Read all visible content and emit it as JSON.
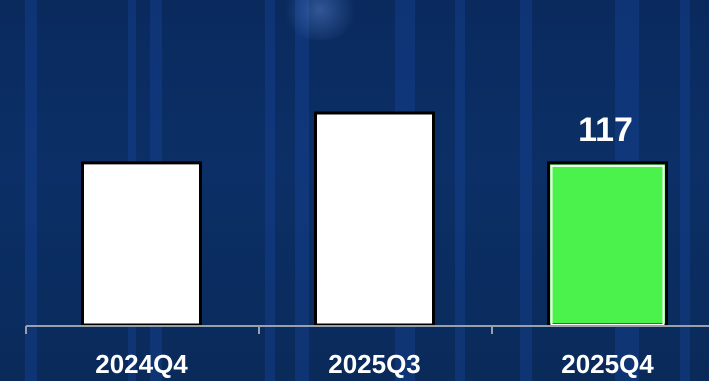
{
  "chart_data": {
    "type": "bar",
    "categories": [
      "2024Q4",
      "2025Q3",
      "2025Q4"
    ],
    "values": [
      117,
      153,
      117
    ],
    "data_labels": [
      "",
      "",
      "117"
    ],
    "title": "",
    "xlabel": "",
    "ylabel": "",
    "ylim": [
      0,
      160
    ],
    "grid": false,
    "colors": {
      "bar_default": "#ffffff",
      "bar_highlight": "#4cf24c",
      "bar_outline": "#000000",
      "axis": "#9aa0aa",
      "text": "#ffffff",
      "background": "#0b2a5c"
    },
    "highlight_index": 2
  }
}
